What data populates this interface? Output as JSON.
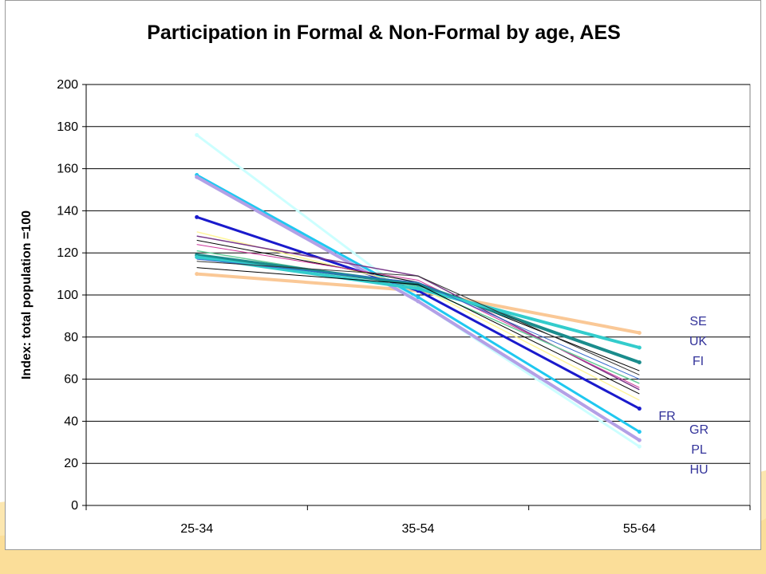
{
  "chart_data": {
    "type": "line",
    "title": "Participation in Formal & Non-Formal by age, AES",
    "ylabel": "Index: total population =100",
    "xlabel": "",
    "categories": [
      "25-34",
      "35-54",
      "55-64"
    ],
    "ylim": [
      0,
      200
    ],
    "yticks": [
      0,
      20,
      40,
      60,
      80,
      100,
      120,
      140,
      160,
      180,
      200
    ],
    "grid": "horizontal",
    "series": [
      {
        "values": [
          110,
          102,
          82
        ],
        "color": "#fac896"
      },
      {
        "values": [
          176,
          97,
          28
        ],
        "color": "#ccffff"
      },
      {
        "values": [
          157,
          99,
          35
        ],
        "color": "#1fc8f0"
      },
      {
        "values": [
          156,
          97,
          31
        ],
        "color": "#b3a0e6"
      },
      {
        "values": [
          137,
          102,
          46
        ],
        "color": "#1a1acc"
      },
      {
        "values": [
          130,
          104,
          50
        ],
        "color": "#fff59a"
      },
      {
        "values": [
          128,
          109,
          55
        ],
        "color": "#7a3a8a"
      },
      {
        "values": [
          126,
          106,
          64
        ],
        "color": "#000000"
      },
      {
        "values": [
          124,
          107,
          56
        ],
        "color": "#cc3399"
      },
      {
        "values": [
          121,
          104,
          58
        ],
        "color": "#66cc99"
      },
      {
        "values": [
          119,
          105,
          68
        ],
        "color": "#1a8c8c"
      },
      {
        "values": [
          118,
          103,
          75
        ],
        "color": "#33cccc"
      },
      {
        "values": [
          117,
          106,
          60
        ],
        "color": "#3366cc"
      },
      {
        "values": [
          116,
          109,
          62
        ],
        "color": "#333333"
      },
      {
        "values": [
          113,
          105,
          53
        ],
        "color": "#000000"
      }
    ],
    "annotations": [
      "SE",
      "UK",
      "FI",
      "FR",
      "GR",
      "PL",
      "HU"
    ]
  },
  "colors": {
    "background_band": "#fce2a2",
    "gridline": "#000000",
    "label_text": "#33339a"
  }
}
